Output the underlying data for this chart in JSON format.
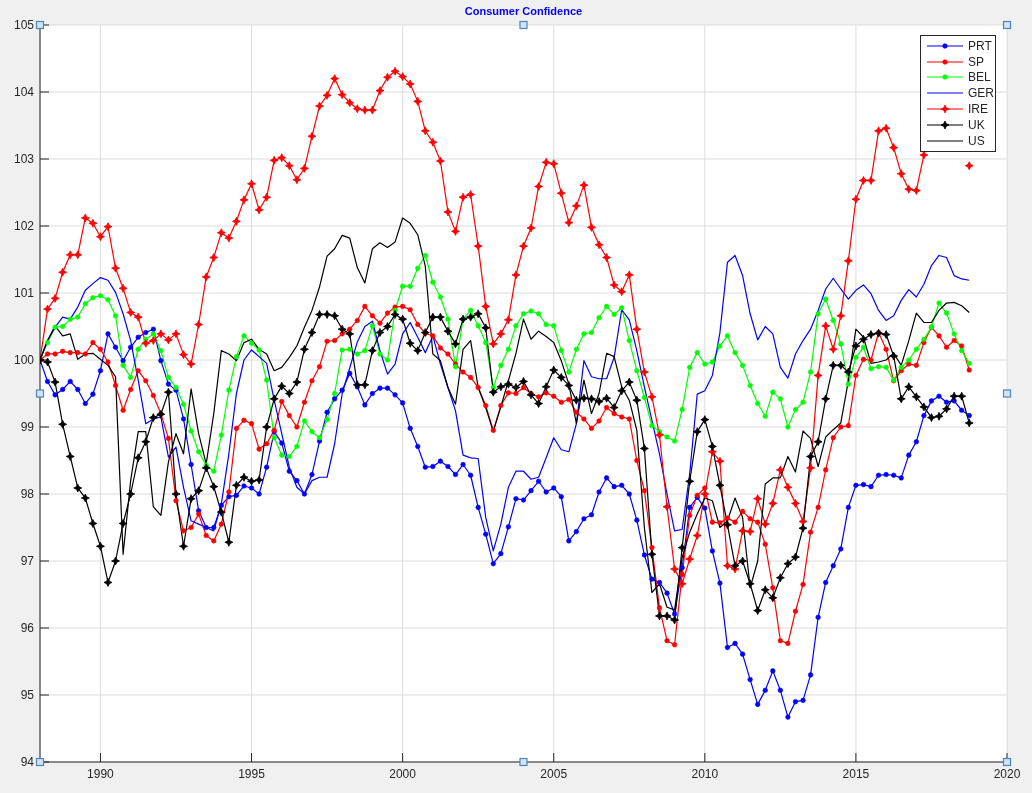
{
  "chart_data": {
    "type": "line",
    "title": "Consumer Confidence",
    "x": [
      1988,
      1988.25,
      1988.5,
      1988.75,
      1989,
      1989.25,
      1989.5,
      1989.75,
      1990,
      1990.25,
      1990.5,
      1990.75,
      1991,
      1991.25,
      1991.5,
      1991.75,
      1992,
      1992.25,
      1992.5,
      1992.75,
      1993,
      1993.25,
      1993.5,
      1993.75,
      1994,
      1994.25,
      1994.5,
      1994.75,
      1995,
      1995.25,
      1995.5,
      1995.75,
      1996,
      1996.25,
      1996.5,
      1996.75,
      1997,
      1997.25,
      1997.5,
      1997.75,
      1998,
      1998.25,
      1998.5,
      1998.75,
      1999,
      1999.25,
      1999.5,
      1999.75,
      2000,
      2000.25,
      2000.5,
      2000.75,
      2001,
      2001.25,
      2001.5,
      2001.75,
      2002,
      2002.25,
      2002.5,
      2002.75,
      2003,
      2003.25,
      2003.5,
      2003.75,
      2004,
      2004.25,
      2004.5,
      2004.75,
      2005,
      2005.25,
      2005.5,
      2005.75,
      2006,
      2006.25,
      2006.5,
      2006.75,
      2007,
      2007.25,
      2007.5,
      2007.75,
      2008,
      2008.25,
      2008.5,
      2008.75,
      2009,
      2009.25,
      2009.5,
      2009.75,
      2010,
      2010.25,
      2010.5,
      2010.75,
      2011,
      2011.25,
      2011.5,
      2011.75,
      2012,
      2012.25,
      2012.5,
      2012.75,
      2013,
      2013.25,
      2013.5,
      2013.75,
      2014,
      2014.25,
      2014.5,
      2014.75,
      2015,
      2015.25,
      2015.5,
      2015.75,
      2016,
      2016.25,
      2016.5,
      2016.75,
      2017,
      2017.25,
      2017.5,
      2017.75,
      2018,
      2018.25,
      2018.5,
      2018.75
    ],
    "xlim": [
      1988,
      2020
    ],
    "xticks": [
      1990,
      1995,
      2000,
      2005,
      2010,
      2015,
      2020
    ],
    "ylim": [
      94,
      105
    ],
    "yticks": [
      94,
      95,
      96,
      97,
      98,
      99,
      100,
      101,
      102,
      103,
      104,
      105
    ],
    "grid": true,
    "legend": "top right",
    "series": [
      {
        "name": "PRT",
        "color": "#0000ff",
        "marker": "circle",
        "values": [
          100,
          99.68,
          99.48,
          99.56,
          99.68,
          99.56,
          99.35,
          99.49,
          99.84,
          100.39,
          100.19,
          99.99,
          100.19,
          100.34,
          100.41,
          100.46,
          99.99,
          99.64,
          99.55,
          99.12,
          98.44,
          97.75,
          97.5,
          97.5,
          97.83,
          97.96,
          97.98,
          98.12,
          98.09,
          98.0,
          98.4,
          98.93,
          98.76,
          98.34,
          98.2,
          98.0,
          98.29,
          98.79,
          99.22,
          99.42,
          99.55,
          99.8,
          99.6,
          99.33,
          99.5,
          99.58,
          99.58,
          99.48,
          99.36,
          98.98,
          98.71,
          98.4,
          98.41,
          98.49,
          98.41,
          98.29,
          98.44,
          98.28,
          97.8,
          97.4,
          96.96,
          97.11,
          97.51,
          97.93,
          97.91,
          98.05,
          98.19,
          98.03,
          98.09,
          97.96,
          97.3,
          97.44,
          97.63,
          97.69,
          98.03,
          98.24,
          98.11,
          98.13,
          98.0,
          97.61,
          97.09,
          96.73,
          96.68,
          96.52,
          96.21,
          96.9,
          97.8,
          97.95,
          97.79,
          97.15,
          96.67,
          95.71,
          95.77,
          95.61,
          95.23,
          94.86,
          95.07,
          95.36,
          95.07,
          94.67,
          94.9,
          94.92,
          95.3,
          96.16,
          96.68,
          96.93,
          97.18,
          97.8,
          98.13,
          98.14,
          98.11,
          98.28,
          98.29,
          98.28,
          98.24,
          98.58,
          98.78,
          99.17,
          99.39,
          99.46,
          99.37,
          99.39,
          99.25,
          99.17
        ]
      },
      {
        "name": "SP",
        "color": "#ff0000",
        "marker": "circle",
        "values": [
          100,
          100.09,
          100.09,
          100.13,
          100.11,
          100.11,
          100.09,
          100.26,
          100.16,
          99.97,
          99.62,
          99.25,
          99.56,
          99.84,
          99.69,
          99.47,
          99.2,
          98.83,
          97.9,
          97.45,
          97.5,
          97.7,
          97.38,
          97.3,
          97.55,
          98.03,
          98.98,
          99.1,
          99.05,
          98.67,
          98.75,
          98.95,
          99.38,
          99.17,
          99.0,
          99.37,
          99.69,
          99.9,
          100.28,
          100.29,
          100.39,
          100.46,
          100.59,
          100.8,
          100.66,
          100.55,
          100.7,
          100.79,
          100.8,
          100.75,
          100.53,
          100.4,
          100.36,
          100.18,
          100.09,
          99.94,
          99.82,
          99.74,
          99.59,
          99.32,
          98.95,
          99.32,
          99.51,
          99.5,
          99.59,
          99.5,
          99.45,
          99.51,
          99.46,
          99.37,
          99.41,
          99.22,
          99.12,
          98.98,
          99.09,
          99.29,
          99.2,
          99.15,
          99.12,
          98.5,
          98.05,
          97.2,
          96.3,
          95.81,
          95.75,
          96.8,
          97.68,
          97.98,
          98.09,
          97.58,
          97.57,
          97.64,
          97.58,
          97.74,
          97.63,
          97.58,
          97.25,
          96.6,
          95.81,
          95.77,
          96.25,
          96.65,
          97.43,
          97.8,
          98.36,
          98.84,
          99.0,
          99.02,
          99.77,
          100.01,
          100.0,
          100.41,
          100.16,
          99.69,
          99.84,
          99.94,
          99.92,
          100.26,
          100.49,
          100.36,
          100.19,
          100.29,
          100.21,
          99.85
        ]
      },
      {
        "name": "BEL",
        "color": "#00ff00",
        "marker": "circle",
        "values": [
          100,
          100.26,
          100.49,
          100.5,
          100.61,
          100.64,
          100.84,
          100.93,
          100.96,
          100.9,
          100.66,
          99.92,
          99.74,
          100.16,
          100.31,
          100.39,
          100.14,
          99.74,
          99.59,
          99.34,
          98.94,
          98.63,
          98.43,
          98.34,
          98.88,
          99.55,
          100.05,
          100.36,
          100.25,
          100.15,
          99.7,
          98.84,
          98.58,
          98.56,
          98.71,
          99.09,
          98.93,
          98.84,
          99.11,
          99.5,
          100.15,
          100.16,
          100.09,
          100.14,
          100.51,
          100.09,
          100.0,
          100.74,
          101.1,
          101.1,
          101.37,
          101.56,
          101.16,
          100.94,
          100.61,
          99.9,
          100.61,
          100.74,
          100.51,
          100.26,
          99.59,
          99.92,
          100.16,
          100.51,
          100.69,
          100.73,
          100.69,
          100.53,
          100.51,
          100.14,
          99.82,
          100.16,
          100.39,
          100.41,
          100.63,
          100.8,
          100.68,
          100.78,
          100.29,
          99.84,
          99.44,
          99.02,
          98.93,
          98.85,
          98.79,
          99.26,
          99.89,
          100.11,
          99.94,
          99.97,
          100.21,
          100.36,
          100.11,
          99.92,
          99.62,
          99.35,
          99.16,
          99.52,
          99.42,
          99.0,
          99.26,
          99.37,
          99.82,
          100.69,
          100.91,
          100.59,
          100.24,
          99.64,
          100.04,
          100.19,
          99.87,
          99.9,
          99.89,
          99.7,
          99.89,
          100.0,
          100.16,
          100.31,
          100.49,
          100.85,
          100.7,
          100.39,
          100.14,
          99.95
        ]
      },
      {
        "name": "GER",
        "color": "#0000ff",
        "marker": "none",
        "values": [
          100,
          100.29,
          100.49,
          100.64,
          100.61,
          100.79,
          101.04,
          101.14,
          101.23,
          101.19,
          101.01,
          100.69,
          100.29,
          99.7,
          99.05,
          99.12,
          99.15,
          98.55,
          98.7,
          98.1,
          97.6,
          97.55,
          97.5,
          97.45,
          97.85,
          98.6,
          99.5,
          100.0,
          100.15,
          100.05,
          99.95,
          99.4,
          98.9,
          98.4,
          98.1,
          98.0,
          98.2,
          98.25,
          98.25,
          98.75,
          99.5,
          99.88,
          100.27,
          100.5,
          100.58,
          100.14,
          99.79,
          99.94,
          100.39,
          100.56,
          100.34,
          100.11,
          100.36,
          99.94,
          99.59,
          99.24,
          98.58,
          98.54,
          98.53,
          97.65,
          97.15,
          97.55,
          98.1,
          98.34,
          98.34,
          98.22,
          98.25,
          98.54,
          98.84,
          98.66,
          98.63,
          99.05,
          99.99,
          99.75,
          99.72,
          99.72,
          100.04,
          100.75,
          100.6,
          100.14,
          99.6,
          99.1,
          98.6,
          98.0,
          97.45,
          97.47,
          98.3,
          99.49,
          99.54,
          99.77,
          100.41,
          101.46,
          101.56,
          101.26,
          100.69,
          100.3,
          100.5,
          100.39,
          99.89,
          99.73,
          100.09,
          100.29,
          100.46,
          100.74,
          101.06,
          101.22,
          101.06,
          100.91,
          101.04,
          101.12,
          100.99,
          100.74,
          100.59,
          100.66,
          100.89,
          101.05,
          100.94,
          101.13,
          101.41,
          101.56,
          101.53,
          101.26,
          101.21,
          101.19
        ]
      },
      {
        "name": "IRE",
        "color": "#ff0000",
        "marker": "diamond",
        "values": [
          100,
          100.76,
          100.92,
          101.31,
          101.57,
          101.57,
          102.12,
          102.04,
          101.84,
          101.99,
          101.37,
          101.07,
          100.71,
          100.64,
          100.25,
          100.29,
          100.39,
          100.3,
          100.39,
          100.08,
          99.94,
          100.53,
          101.24,
          101.53,
          101.9,
          101.82,
          102.07,
          102.39,
          102.63,
          102.24,
          102.43,
          102.98,
          103.02,
          102.9,
          102.69,
          102.86,
          103.34,
          103.79,
          103.95,
          104.2,
          103.96,
          103.84,
          103.75,
          103.73,
          103.73,
          104.02,
          104.22,
          104.31,
          104.23,
          104.12,
          103.86,
          103.42,
          103.25,
          102.97,
          102.21,
          101.92,
          102.43,
          102.47,
          101.7,
          100.8,
          100.24,
          100.39,
          100.6,
          101.27,
          101.7,
          101.97,
          102.59,
          102.95,
          102.93,
          102.49,
          102.05,
          102.3,
          102.61,
          101.98,
          101.72,
          101.53,
          101.12,
          101.02,
          101.27,
          100.46,
          99.82,
          99.45,
          98.88,
          97.81,
          96.88,
          96.66,
          97.03,
          97.38,
          98.0,
          98.63,
          98.49,
          96.93,
          96.88,
          97.45,
          97.44,
          97.93,
          97.55,
          97.86,
          98.36,
          98.1,
          97.86,
          97.59,
          98.39,
          99.77,
          100.51,
          100.16,
          100.66,
          101.48,
          102.4,
          102.68,
          102.68,
          103.42,
          103.46,
          103.17,
          102.78,
          102.55,
          102.53,
          103.06,
          null,
          null,
          null,
          null,
          null,
          102.9
        ]
      },
      {
        "name": "UK",
        "color": "#000000",
        "marker": "diamond",
        "values": [
          100,
          99.97,
          99.67,
          99.04,
          98.56,
          98.09,
          97.94,
          97.56,
          97.22,
          96.68,
          97.0,
          97.56,
          98.0,
          98.54,
          98.78,
          99.14,
          99.19,
          99.52,
          98.0,
          97.22,
          97.93,
          98.05,
          98.39,
          98.11,
          97.73,
          97.28,
          98.13,
          98.25,
          98.19,
          98.21,
          99.0,
          99.42,
          99.61,
          99.5,
          99.67,
          100.16,
          100.41,
          100.68,
          100.68,
          100.66,
          100.46,
          100.39,
          99.63,
          99.63,
          100.14,
          100.41,
          100.5,
          100.68,
          100.61,
          100.25,
          100.14,
          100.41,
          100.64,
          100.64,
          100.43,
          100.24,
          100.61,
          100.64,
          100.69,
          100.48,
          99.52,
          99.6,
          99.64,
          99.59,
          99.68,
          99.48,
          99.35,
          99.6,
          99.85,
          99.74,
          99.62,
          99.4,
          99.43,
          99.42,
          99.38,
          99.43,
          99.29,
          99.54,
          99.67,
          99.4,
          98.68,
          97.1,
          96.18,
          96.18,
          96.12,
          97.2,
          98.19,
          98.93,
          99.11,
          98.71,
          98.13,
          97.54,
          96.93,
          97.0,
          96.66,
          96.26,
          96.57,
          96.45,
          96.75,
          96.96,
          97.06,
          97.49,
          98.56,
          98.78,
          99.42,
          99.92,
          99.92,
          99.82,
          100.21,
          100.31,
          100.38,
          100.4,
          100.38,
          100.06,
          99.42,
          99.6,
          99.45,
          99.3,
          99.14,
          99.16,
          99.27,
          99.46,
          99.46,
          99.06
        ]
      },
      {
        "name": "US",
        "color": "#000000",
        "marker": "none",
        "values": [
          100,
          100.29,
          100.51,
          100.36,
          100.39,
          100.01,
          100.09,
          100.1,
          100.01,
          99.92,
          99.75,
          97.1,
          98.2,
          98.93,
          98.93,
          97.81,
          97.68,
          98.48,
          98.9,
          98.6,
          99.57,
          98.9,
          98.45,
          99.2,
          100.14,
          100.09,
          99.99,
          100.26,
          100.31,
          100.16,
          100.09,
          99.84,
          99.89,
          100.04,
          100.21,
          100.49,
          100.74,
          101.09,
          101.55,
          101.66,
          101.86,
          101.82,
          101.38,
          101.15,
          101.66,
          101.75,
          101.68,
          101.76,
          102.12,
          102.04,
          101.87,
          101.4,
          100.09,
          99.99,
          99.59,
          99.34,
          100.16,
          100.29,
          99.59,
          99.29,
          98.93,
          99.3,
          99.69,
          100.1,
          100.61,
          100.31,
          100.43,
          100.35,
          100.26,
          99.99,
          99.64,
          99.05,
          99.7,
          99.2,
          99.5,
          100.1,
          100.05,
          99.6,
          99.4,
          98.95,
          97.5,
          96.53,
          96.66,
          96.31,
          96.27,
          97.05,
          97.43,
          97.7,
          97.94,
          97.9,
          97.5,
          97.6,
          97.94,
          97.65,
          96.6,
          97.0,
          98.15,
          98.24,
          98.24,
          98.56,
          98.33,
          98.94,
          98.83,
          98.41,
          98.85,
          98.96,
          99.06,
          99.69,
          100.46,
          100.34,
          99.95,
          99.97,
          100.0,
          100.1,
          99.92,
          100.29,
          100.7,
          100.56,
          100.56,
          100.74,
          100.85,
          100.86,
          100.81,
          100.71
        ]
      }
    ]
  }
}
